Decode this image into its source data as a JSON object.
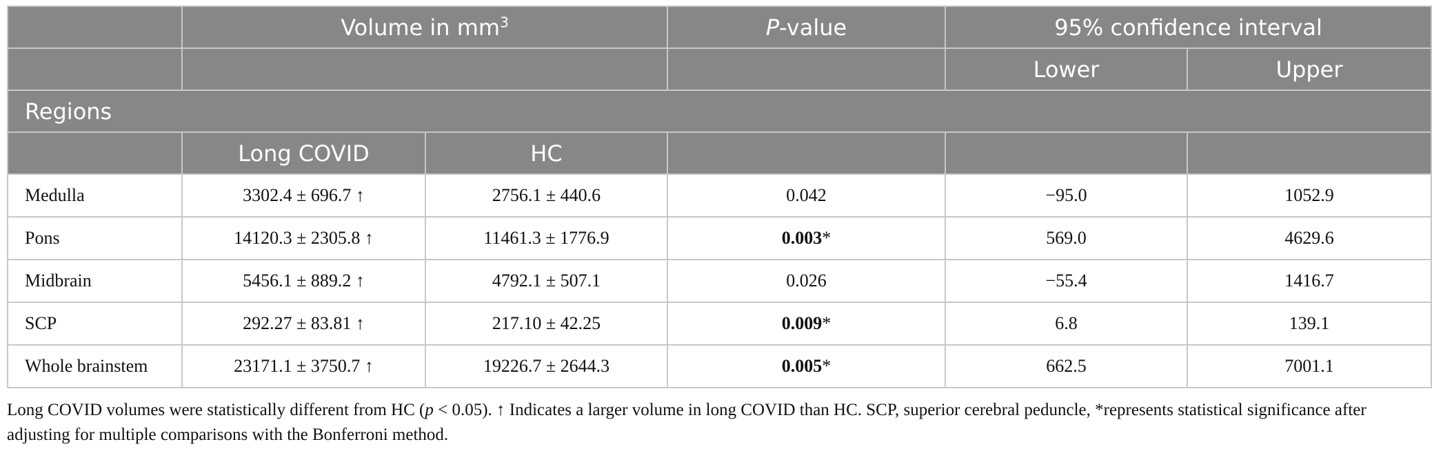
{
  "header": {
    "volume_label": "Volume in mm",
    "volume_sup": "3",
    "p_label_italic": "P",
    "p_label_rest": "-value",
    "ci_label": "95% confidence interval",
    "lower": "Lower",
    "upper": "Upper",
    "regions": "Regions",
    "long_covid": "Long COVID",
    "hc": "HC"
  },
  "rows": [
    {
      "region": "Medulla",
      "long_covid": "3302.4 ± 696.7 ↑",
      "hc": "2756.1 ± 440.6",
      "p": "0.042",
      "p_star": "",
      "lower": "−95.0",
      "upper": "1052.9"
    },
    {
      "region": "Pons",
      "long_covid": "14120.3 ± 2305.8 ↑",
      "hc": "11461.3 ± 1776.9",
      "p": "0.003",
      "p_star": "*",
      "lower": "569.0",
      "upper": "4629.6"
    },
    {
      "region": "Midbrain",
      "long_covid": "5456.1 ± 889.2 ↑",
      "hc": "4792.1 ± 507.1",
      "p": "0.026",
      "p_star": "",
      "lower": "−55.4",
      "upper": "1416.7"
    },
    {
      "region": "SCP",
      "long_covid": "292.27 ± 83.81 ↑",
      "hc": "217.10 ± 42.25",
      "p": "0.009",
      "p_star": "*",
      "lower": "6.8",
      "upper": "139.1"
    },
    {
      "region": "Whole brainstem",
      "long_covid": "23171.1 ± 3750.7 ↑",
      "hc": "19226.7 ± 2644.3",
      "p": "0.005",
      "p_star": "*",
      "lower": "662.5",
      "upper": "7001.1"
    }
  ],
  "footnote": {
    "part1": "Long COVID volumes were statistically different from HC (",
    "p_italic": "p",
    "part2": " < 0.05). ↑ Indicates a larger volume in long COVID than HC. SCP, superior cerebral peduncle, *represents statistical significance after adjusting for multiple comparisons with the Bonferroni method."
  },
  "colors": {
    "header_bg": "#878787",
    "header_text": "#ffffff",
    "border": "#c8c8c8"
  }
}
